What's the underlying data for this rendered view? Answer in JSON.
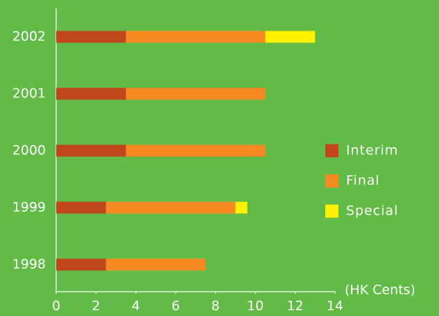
{
  "chart_data": {
    "type": "stacked-barh",
    "categories": [
      "2002",
      "2001",
      "2000",
      "1999",
      "1998"
    ],
    "series": [
      {
        "name": "Interim",
        "color": "#c0471c",
        "values": [
          3.5,
          3.5,
          3.5,
          2.5,
          2.5
        ]
      },
      {
        "name": "Final",
        "color": "#f58a22",
        "values": [
          7,
          7,
          7,
          6.5,
          5
        ]
      },
      {
        "name": "Special",
        "color": "#fff200",
        "values": [
          2.5,
          null,
          null,
          0.6,
          null
        ]
      }
    ],
    "x_label": "(HK Cents)",
    "xlim": [
      0,
      14
    ],
    "xticks": [
      0,
      2,
      4,
      6,
      8,
      10,
      12,
      14
    ],
    "legend": "right"
  }
}
